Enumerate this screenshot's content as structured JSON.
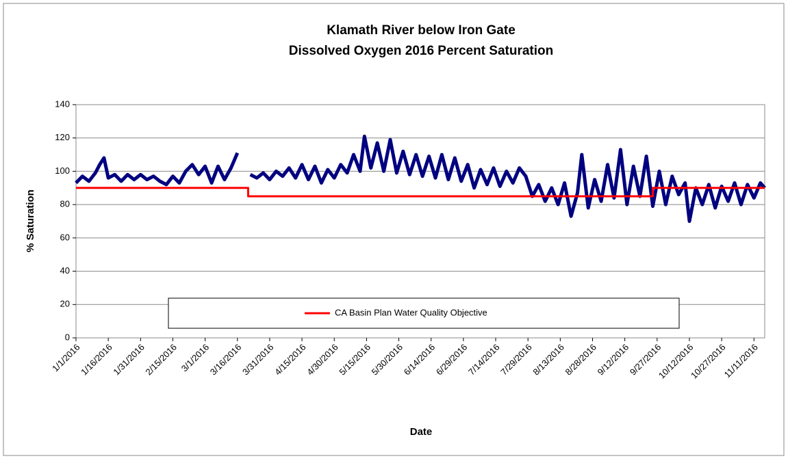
{
  "chart_data": {
    "type": "line",
    "title": "Klamath River below Iron Gate",
    "subtitle": "Dissolved Oxygen 2016 Percent Saturation",
    "x_label": "Date",
    "y_label": "% Saturation",
    "xlim": [
      "1/1/2016",
      "11/16/2016"
    ],
    "xticks": [
      "1/1/2016",
      "1/16/2016",
      "1/31/2016",
      "2/15/2016",
      "3/1/2016",
      "3/16/2016",
      "3/31/2016",
      "4/15/2016",
      "4/30/2016",
      "5/15/2016",
      "5/30/2016",
      "6/14/2016",
      "6/29/2016",
      "7/14/2016",
      "7/29/2016",
      "8/13/2016",
      "8/28/2016",
      "9/12/2016",
      "9/27/2016",
      "10/12/2016",
      "10/27/2016",
      "11/11/2016"
    ],
    "ylim": [
      0,
      140
    ],
    "yticks": [
      0,
      20,
      40,
      60,
      80,
      100,
      120,
      140
    ],
    "grid": true,
    "legend": "bottom",
    "series": [
      {
        "color": "#000080",
        "x": [
          "1/1/2016",
          "1/4/2016",
          "1/7/2016",
          "1/10/2016",
          "1/12/2016",
          "1/14/2016",
          "1/16/2016",
          "1/19/2016",
          "1/22/2016",
          "1/25/2016",
          "1/28/2016",
          "1/31/2016",
          "2/3/2016",
          "2/6/2016",
          "2/9/2016",
          "2/12/2016",
          "2/15/2016",
          "2/18/2016",
          "2/21/2016",
          "2/24/2016",
          "2/27/2016",
          "3/1/2016",
          "3/4/2016",
          "3/7/2016",
          "3/10/2016",
          "3/13/2016",
          "3/16/2016",
          "3/19/2016",
          "3/22/2016",
          "3/25/2016",
          "3/28/2016",
          "3/31/2016",
          "4/3/2016",
          "4/6/2016",
          "4/9/2016",
          "4/12/2016",
          "4/15/2016",
          "4/18/2016",
          "4/21/2016",
          "4/24/2016",
          "4/27/2016",
          "4/30/2016",
          "5/3/2016",
          "5/6/2016",
          "5/9/2016",
          "5/12/2016",
          "5/14/2016",
          "5/17/2016",
          "5/20/2016",
          "5/23/2016",
          "5/26/2016",
          "5/29/2016",
          "6/1/2016",
          "6/4/2016",
          "6/7/2016",
          "6/10/2016",
          "6/13/2016",
          "6/16/2016",
          "6/19/2016",
          "6/22/2016",
          "6/25/2016",
          "6/28/2016",
          "7/1/2016",
          "7/4/2016",
          "7/7/2016",
          "7/10/2016",
          "7/13/2016",
          "7/16/2016",
          "7/19/2016",
          "7/22/2016",
          "7/25/2016",
          "7/28/2016",
          "7/31/2016",
          "8/3/2016",
          "8/6/2016",
          "8/9/2016",
          "8/12/2016",
          "8/15/2016",
          "8/18/2016",
          "8/21/2016",
          "8/23/2016",
          "8/26/2016",
          "8/29/2016",
          "9/1/2016",
          "9/4/2016",
          "9/7/2016",
          "9/10/2016",
          "9/13/2016",
          "9/16/2016",
          "9/19/2016",
          "9/22/2016",
          "9/25/2016",
          "9/28/2016",
          "10/1/2016",
          "10/4/2016",
          "10/7/2016",
          "10/10/2016",
          "10/12/2016",
          "10/15/2016",
          "10/18/2016",
          "10/21/2016",
          "10/24/2016",
          "10/27/2016",
          "10/30/2016",
          "11/2/2016",
          "11/5/2016",
          "11/8/2016",
          "11/11/2016",
          "11/14/2016",
          "11/16/2016"
        ],
        "values": [
          93,
          97,
          94,
          99,
          104,
          108,
          96,
          98,
          94,
          98,
          95,
          98,
          95,
          97,
          94,
          92,
          97,
          93,
          100,
          104,
          98,
          103,
          93,
          103,
          95,
          102,
          111,
          null,
          98,
          96,
          99,
          95,
          100,
          97,
          102,
          96,
          104,
          95,
          103,
          93,
          101,
          96,
          104,
          99,
          110,
          100,
          121,
          102,
          117,
          100,
          119,
          99,
          112,
          98,
          110,
          97,
          109,
          96,
          110,
          95,
          108,
          94,
          104,
          90,
          101,
          92,
          102,
          91,
          100,
          93,
          102,
          97,
          85,
          92,
          82,
          90,
          80,
          93,
          73,
          87,
          110,
          78,
          95,
          82,
          104,
          84,
          113,
          80,
          103,
          85,
          109,
          79,
          100,
          80,
          97,
          86,
          93,
          70,
          90,
          80,
          92,
          78,
          91,
          82,
          93,
          80,
          92,
          84,
          93,
          90
        ]
      },
      {
        "name": "CA Basin Plan Water Quality Objective",
        "color": "#ff0000",
        "x": [
          "1/1/2016",
          "3/21/2016",
          "3/21/2016",
          "9/25/2016",
          "9/25/2016",
          "11/16/2016"
        ],
        "values": [
          90,
          90,
          85,
          85,
          90,
          90
        ]
      }
    ]
  }
}
